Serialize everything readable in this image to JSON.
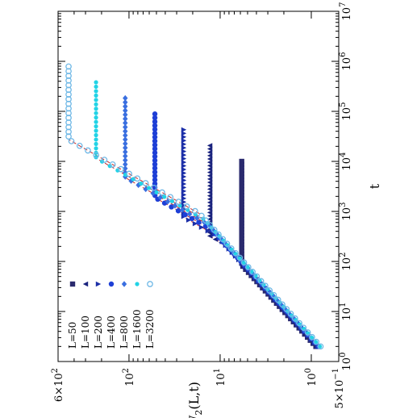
{
  "chart_data": {
    "type": "scatter",
    "orientation": "rotated-90",
    "x_axis": {
      "label": "t",
      "scale": "log",
      "range": [
        1,
        10000000
      ],
      "ticks": [
        {
          "value": 1,
          "label": "10^0"
        },
        {
          "value": 10,
          "label": "10^1"
        },
        {
          "value": 100,
          "label": "10^2"
        },
        {
          "value": 1000,
          "label": "10^3"
        },
        {
          "value": 10000,
          "label": "10^4"
        },
        {
          "value": 100000,
          "label": "10^5"
        },
        {
          "value": 1000000,
          "label": "10^6"
        },
        {
          "value": 10000000,
          "label": "10^7"
        }
      ]
    },
    "y_axis": {
      "label": "W_2(L,t)",
      "scale": "log",
      "range": [
        0.5,
        600
      ],
      "ticks": [
        {
          "value": 0.5,
          "label": "5x10^-1"
        },
        {
          "value": 1,
          "label": "10^0"
        },
        {
          "value": 10,
          "label": "10^1"
        },
        {
          "value": 100,
          "label": "10^2"
        },
        {
          "value": 600,
          "label": "6x10^2"
        }
      ]
    },
    "legend_placement": "bottom-left",
    "series": [
      {
        "name": "L=50",
        "color": "#2a2a6e",
        "marker": "square",
        "early_amp": 0.63,
        "slope_early": 0.5,
        "slope_late": 0.97,
        "t_cross": 100,
        "saturation": 5.8
      },
      {
        "name": "L=100",
        "color": "#1a237e",
        "marker": "triangle-left",
        "early_amp": 0.61,
        "slope_early": 0.5,
        "slope_late": 0.97,
        "t_cross": 220,
        "saturation": 13
      },
      {
        "name": "L=200",
        "color": "#1c2fa8",
        "marker": "triangle-right",
        "early_amp": 0.6,
        "slope_early": 0.5,
        "slope_late": 0.97,
        "t_cross": 320,
        "saturation": 25
      },
      {
        "name": "L=400",
        "color": "#1e3fd6",
        "marker": "circle",
        "early_amp": 0.59,
        "slope_early": 0.5,
        "slope_late": 0.97,
        "t_cross": 420,
        "saturation": 52
      },
      {
        "name": "L=800",
        "color": "#3a6fe0",
        "marker": "diamond",
        "early_amp": 0.58,
        "slope_early": 0.5,
        "slope_late": 0.97,
        "t_cross": 550,
        "saturation": 110
      },
      {
        "name": "L=1600",
        "color": "#22d3e6",
        "marker": "circle-filled-small",
        "early_amp": 0.57,
        "slope_early": 0.5,
        "slope_late": 0.97,
        "t_cross": 700,
        "saturation": 230
      },
      {
        "name": "L=3200",
        "color": "#6fb8e6",
        "marker": "circle-open",
        "early_amp": 0.56,
        "slope_early": 0.5,
        "slope_late": 0.97,
        "t_cross": 900,
        "saturation": 460
      }
    ],
    "fit_line_color": "#c62828"
  }
}
